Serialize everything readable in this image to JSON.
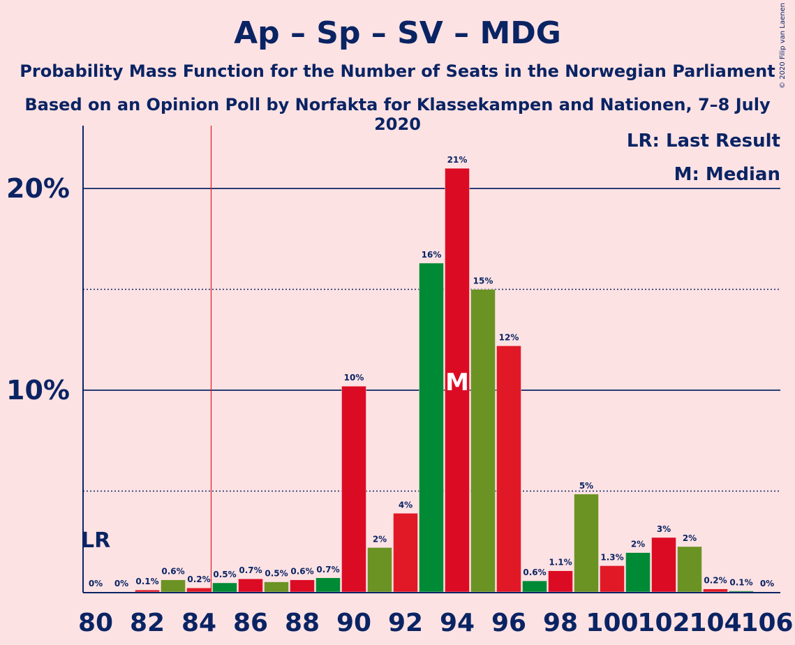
{
  "title": "Ap – Sp – SV – MDG",
  "subtitle_1": "Probability Mass Function for the Number of Seats in the Norwegian Parliament",
  "subtitle_2": "Based on an Opinion Poll by Norfakta for Klassekampen and Nationen, 7–8 July 2020",
  "copyright": "© 2020 Filip van Laenen",
  "legend": {
    "last_result": "LR: Last Result",
    "median": "M: Median"
  },
  "markers": {
    "last_result_label": "LR",
    "median_label": "M"
  },
  "colors": {
    "background": "#FDE2E4",
    "axis": "#0A2463",
    "dark_red": "#DC0B24",
    "red": "#E11926",
    "dark_green": "#008A35",
    "olive_green": "#6A9324",
    "last_result_line": "#E11926",
    "median_text": "#FFFFFF"
  },
  "chart_data": {
    "type": "bar",
    "xlabel": "",
    "ylabel": "",
    "ylim": [
      0,
      23
    ],
    "yticks": [
      {
        "value": 10,
        "label": "10%"
      },
      {
        "value": 20,
        "label": "20%"
      }
    ],
    "dotted_gridlines": [
      5,
      15
    ],
    "xtick_labels": [
      "80",
      "82",
      "84",
      "86",
      "88",
      "90",
      "92",
      "94",
      "96",
      "98",
      "100",
      "102",
      "104",
      "106"
    ],
    "last_result_seat": 84,
    "median_seat": 94,
    "bars": [
      {
        "seat": 80,
        "value": 0,
        "label": "0%",
        "color": "olive_green"
      },
      {
        "seat": 81,
        "value": 0,
        "label": "0%",
        "color": "dark_red"
      },
      {
        "seat": 82,
        "value": 0.1,
        "label": "0.1%",
        "color": "red"
      },
      {
        "seat": 83,
        "value": 0.6,
        "label": "0.6%",
        "color": "olive_green"
      },
      {
        "seat": 84,
        "value": 0.2,
        "label": "0.2%",
        "color": "red"
      },
      {
        "seat": 85,
        "value": 0.45,
        "label": "0.5%",
        "color": "dark_green"
      },
      {
        "seat": 86,
        "value": 0.65,
        "label": "0.7%",
        "color": "dark_red"
      },
      {
        "seat": 87,
        "value": 0.5,
        "label": "0.5%",
        "color": "olive_green"
      },
      {
        "seat": 88,
        "value": 0.6,
        "label": "0.6%",
        "color": "dark_red"
      },
      {
        "seat": 89,
        "value": 0.7,
        "label": "0.7%",
        "color": "dark_green"
      },
      {
        "seat": 90,
        "value": 10.2,
        "label": "10%",
        "color": "dark_red"
      },
      {
        "seat": 91,
        "value": 2.2,
        "label": "2%",
        "color": "olive_green"
      },
      {
        "seat": 92,
        "value": 3.9,
        "label": "4%",
        "color": "red"
      },
      {
        "seat": 93,
        "value": 16.3,
        "label": "16%",
        "color": "dark_green"
      },
      {
        "seat": 94,
        "value": 21.0,
        "label": "21%",
        "color": "dark_red"
      },
      {
        "seat": 95,
        "value": 15.0,
        "label": "15%",
        "color": "olive_green"
      },
      {
        "seat": 96,
        "value": 12.2,
        "label": "12%",
        "color": "red"
      },
      {
        "seat": 97,
        "value": 0.55,
        "label": "0.6%",
        "color": "dark_green"
      },
      {
        "seat": 98,
        "value": 1.05,
        "label": "1.1%",
        "color": "dark_red"
      },
      {
        "seat": 99,
        "value": 4.85,
        "label": "5%",
        "color": "olive_green"
      },
      {
        "seat": 100,
        "value": 1.3,
        "label": "1.3%",
        "color": "red"
      },
      {
        "seat": 101,
        "value": 1.95,
        "label": "2%",
        "color": "dark_green"
      },
      {
        "seat": 102,
        "value": 2.7,
        "label": "3%",
        "color": "dark_red"
      },
      {
        "seat": 103,
        "value": 2.25,
        "label": "2%",
        "color": "olive_green"
      },
      {
        "seat": 104,
        "value": 0.15,
        "label": "0.2%",
        "color": "red"
      },
      {
        "seat": 105,
        "value": 0.05,
        "label": "0.1%",
        "color": "dark_green"
      },
      {
        "seat": 106,
        "value": 0,
        "label": "0%",
        "color": "dark_red"
      }
    ]
  }
}
